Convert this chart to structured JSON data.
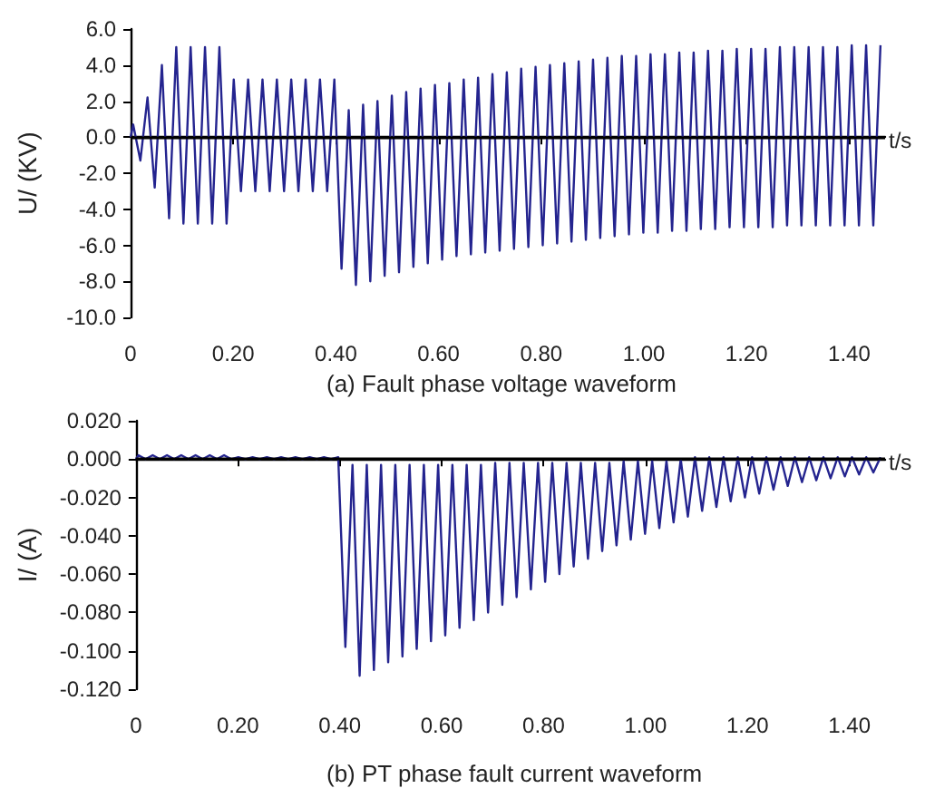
{
  "chart_data": [
    {
      "type": "line",
      "title": "(a) Fault phase voltage waveform",
      "xlabel": "t/s",
      "ylabel": "U/ (KV)",
      "grid": false,
      "marker": "none",
      "line_style": "solid",
      "xlim": [
        0,
        1.47
      ],
      "xticks": [
        {
          "value": 0,
          "label": "0"
        },
        {
          "value": 0.2,
          "label": "0.20"
        },
        {
          "value": 0.4,
          "label": "0.40"
        },
        {
          "value": 0.6,
          "label": "0.60"
        },
        {
          "value": 0.8,
          "label": "0.80"
        },
        {
          "value": 1.0,
          "label": "1.00"
        },
        {
          "value": 1.2,
          "label": "1.20"
        },
        {
          "value": 1.4,
          "label": "1.40"
        }
      ],
      "ylim": [
        -10,
        6
      ],
      "yticks": [
        {
          "value": 6,
          "label": "6.0"
        },
        {
          "value": 4,
          "label": "4.0"
        },
        {
          "value": 2,
          "label": "2.0"
        },
        {
          "value": 0,
          "label": "0.0"
        },
        {
          "value": -2,
          "label": "-2.0"
        },
        {
          "value": -4,
          "label": "-4.0"
        },
        {
          "value": -6,
          "label": "-6.0"
        },
        {
          "value": -8,
          "label": "-8.0"
        },
        {
          "value": -10,
          "label": "-10.0"
        }
      ],
      "ref_lines": [
        {
          "axis": "y",
          "value": 0,
          "color": "#000000"
        }
      ],
      "series": [
        {
          "color": "#24248f",
          "x": [
            0,
            0.005,
            0.019,
            0.033,
            0.047,
            0.061,
            0.075,
            0.089,
            0.103,
            0.117,
            0.131,
            0.145,
            0.159,
            0.173,
            0.187,
            0.201,
            0.215,
            0.229,
            0.243,
            0.257,
            0.271,
            0.285,
            0.299,
            0.313,
            0.327,
            0.341,
            0.355,
            0.369,
            0.383,
            0.397,
            0.411,
            0.425,
            0.439,
            0.453,
            0.467,
            0.481,
            0.495,
            0.509,
            0.523,
            0.537,
            0.551,
            0.565,
            0.579,
            0.593,
            0.607,
            0.621,
            0.635,
            0.649,
            0.663,
            0.677,
            0.691,
            0.705,
            0.719,
            0.733,
            0.747,
            0.761,
            0.775,
            0.789,
            0.803,
            0.817,
            0.831,
            0.845,
            0.859,
            0.873,
            0.887,
            0.901,
            0.915,
            0.929,
            0.943,
            0.957,
            0.971,
            0.985,
            0.999,
            1.013,
            1.027,
            1.041,
            1.055,
            1.069,
            1.083,
            1.097,
            1.111,
            1.125,
            1.139,
            1.153,
            1.167,
            1.181,
            1.195,
            1.209,
            1.223,
            1.237,
            1.251,
            1.265,
            1.279,
            1.293,
            1.307,
            1.321,
            1.335,
            1.349,
            1.363,
            1.377,
            1.391,
            1.405,
            1.419,
            1.433,
            1.447,
            1.461
          ],
          "values": [
            0,
            0.7,
            -1.3,
            2.2,
            -2.8,
            4.0,
            -4.5,
            5.0,
            -4.8,
            5.0,
            -4.8,
            5.0,
            -4.8,
            5.0,
            -4.8,
            3.2,
            -3.0,
            3.2,
            -3.0,
            3.2,
            -3.0,
            3.2,
            -3.0,
            3.2,
            -3.0,
            3.2,
            -3.0,
            3.2,
            -3.0,
            3.2,
            -7.3,
            1.5,
            -8.2,
            1.8,
            -8.0,
            2.0,
            -7.7,
            2.3,
            -7.5,
            2.5,
            -7.2,
            2.7,
            -7.0,
            2.9,
            -6.8,
            3.0,
            -6.6,
            3.2,
            -6.5,
            3.3,
            -6.4,
            3.5,
            -6.3,
            3.6,
            -6.2,
            3.8,
            -6.1,
            3.9,
            -6.0,
            4.0,
            -5.9,
            4.1,
            -5.8,
            4.2,
            -5.7,
            4.3,
            -5.6,
            4.4,
            -5.5,
            4.5,
            -5.4,
            4.5,
            -5.3,
            4.6,
            -5.3,
            4.6,
            -5.2,
            4.7,
            -5.2,
            4.7,
            -5.1,
            4.8,
            -5.1,
            4.8,
            -5.0,
            4.9,
            -5.0,
            4.9,
            -5.0,
            4.9,
            -5.0,
            5.0,
            -4.9,
            5.0,
            -4.9,
            5.0,
            -4.9,
            5.0,
            -4.9,
            5.0,
            -4.9,
            5.1,
            -4.9,
            5.1,
            -4.9,
            5.1
          ]
        }
      ]
    },
    {
      "type": "line",
      "title": "(b) PT phase fault current waveform",
      "xlabel": "t/s",
      "ylabel": "I/ (A)",
      "grid": false,
      "marker": "none",
      "line_style": "solid",
      "xlim": [
        0,
        1.47
      ],
      "xticks": [
        {
          "value": 0,
          "label": "0"
        },
        {
          "value": 0.2,
          "label": "0.20"
        },
        {
          "value": 0.4,
          "label": "0.40"
        },
        {
          "value": 0.6,
          "label": "0.60"
        },
        {
          "value": 0.8,
          "label": "0.80"
        },
        {
          "value": 1.0,
          "label": "1.00"
        },
        {
          "value": 1.2,
          "label": "1.20"
        },
        {
          "value": 1.4,
          "label": "1.40"
        }
      ],
      "ylim": [
        -0.12,
        0.02
      ],
      "yticks": [
        {
          "value": 0.02,
          "label": "0.020"
        },
        {
          "value": 0,
          "label": "0.000"
        },
        {
          "value": -0.02,
          "label": "-0.020"
        },
        {
          "value": -0.04,
          "label": "-0.040"
        },
        {
          "value": -0.06,
          "label": "-0.060"
        },
        {
          "value": -0.08,
          "label": "-0.080"
        },
        {
          "value": -0.1,
          "label": "-0.100"
        },
        {
          "value": -0.12,
          "label": "-0.120"
        }
      ],
      "ref_lines": [
        {
          "axis": "y",
          "value": 0,
          "color": "#000000"
        }
      ],
      "series": [
        {
          "color": "#24248f",
          "x": [
            0,
            0.005,
            0.019,
            0.033,
            0.047,
            0.061,
            0.075,
            0.089,
            0.103,
            0.117,
            0.131,
            0.145,
            0.159,
            0.173,
            0.187,
            0.201,
            0.215,
            0.229,
            0.243,
            0.257,
            0.271,
            0.285,
            0.299,
            0.313,
            0.327,
            0.341,
            0.355,
            0.369,
            0.383,
            0.397,
            0.411,
            0.425,
            0.439,
            0.453,
            0.467,
            0.481,
            0.495,
            0.509,
            0.523,
            0.537,
            0.551,
            0.565,
            0.579,
            0.593,
            0.607,
            0.621,
            0.635,
            0.649,
            0.663,
            0.677,
            0.691,
            0.705,
            0.719,
            0.733,
            0.747,
            0.761,
            0.775,
            0.789,
            0.803,
            0.817,
            0.831,
            0.845,
            0.859,
            0.873,
            0.887,
            0.901,
            0.915,
            0.929,
            0.943,
            0.957,
            0.971,
            0.985,
            0.999,
            1.013,
            1.027,
            1.041,
            1.055,
            1.069,
            1.083,
            1.097,
            1.111,
            1.125,
            1.139,
            1.153,
            1.167,
            1.181,
            1.195,
            1.209,
            1.223,
            1.237,
            1.251,
            1.265,
            1.279,
            1.293,
            1.307,
            1.321,
            1.335,
            1.349,
            1.363,
            1.377,
            1.391,
            1.405,
            1.419,
            1.433,
            1.447,
            1.461
          ],
          "values": [
            0,
            0.002,
            0,
            0.002,
            0,
            0.002,
            0,
            0.002,
            0,
            0.002,
            0,
            0.002,
            0,
            0.002,
            0,
            0.001,
            0,
            0.001,
            0,
            0.001,
            0,
            0.001,
            0,
            0.001,
            0,
            0.001,
            0,
            0.001,
            0,
            0.001,
            -0.098,
            -0.003,
            -0.113,
            -0.003,
            -0.11,
            -0.003,
            -0.106,
            -0.003,
            -0.103,
            -0.003,
            -0.099,
            -0.003,
            -0.095,
            -0.003,
            -0.092,
            -0.003,
            -0.088,
            -0.003,
            -0.084,
            -0.003,
            -0.08,
            -0.002,
            -0.076,
            -0.002,
            -0.072,
            -0.002,
            -0.068,
            -0.002,
            -0.064,
            -0.002,
            -0.06,
            -0.002,
            -0.056,
            -0.002,
            -0.052,
            -0.002,
            -0.048,
            -0.002,
            -0.045,
            -0.001,
            -0.042,
            -0.001,
            -0.039,
            -0.001,
            -0.036,
            -0.001,
            -0.033,
            0,
            -0.03,
            0.001,
            -0.027,
            0.001,
            -0.025,
            0.001,
            -0.022,
            0.001,
            -0.02,
            0.001,
            -0.018,
            0.001,
            -0.016,
            0.001,
            -0.014,
            0.001,
            -0.012,
            0.001,
            -0.011,
            0.001,
            -0.01,
            0.001,
            -0.009,
            0.001,
            -0.008,
            0.001,
            -0.007,
            0.001
          ]
        }
      ]
    }
  ]
}
